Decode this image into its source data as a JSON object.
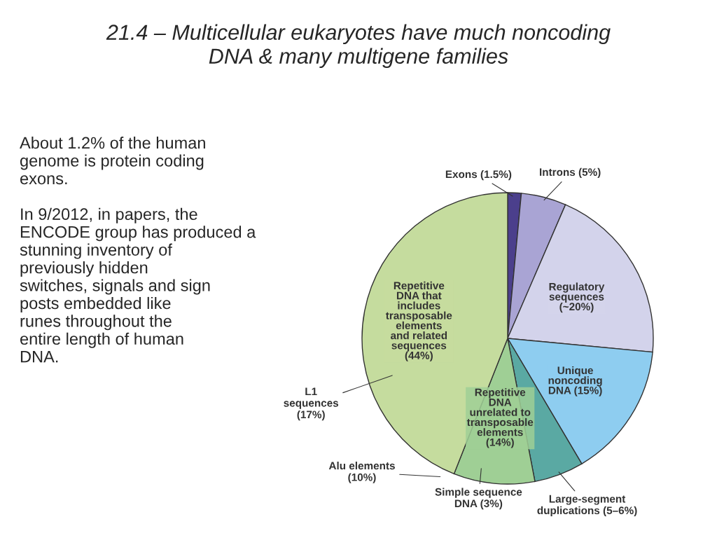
{
  "chart_data": {
    "type": "pie",
    "title": "21.4 – Multicellular eukaryotes have much noncoding\nDNA & many multigene families",
    "categories": [
      "Exons (1.5%)",
      "Introns (5%)",
      "Regulatory\nsequences\n(~20%)",
      "Unique\nnoncoding\nDNA (15%)",
      "Large-segment\nduplications (5–6%)",
      "Repetitive\nDNA\nunrelated to\ntransposable\nelements\n(14%)",
      "Repetitive\nDNA that\nincludes\ntransposable\nelements\nand related\nsequences\n(44%)"
    ],
    "values": [
      1.5,
      5,
      20,
      15,
      5.5,
      9,
      44
    ],
    "colors": [
      "#4b3f8c",
      "#a9a4d4",
      "#d3d3eb",
      "#8ecdf0",
      "#5aa9a3",
      "#9fcf95",
      "#c5dc9e"
    ],
    "annotations": [
      "About 1.2% of the human\ngenome is protein coding\nexons.\n\nIn 9/2012, in papers, the\nENCODE group has produced a\nstunning inventory of\npreviously hidden\nswitches, signals and sign\nposts embedded like\nrunes throughout the\nentire length of human\nDNA.",
      "L1\nsequences\n(17%)",
      "Alu elements\n(10%)",
      "Simple sequence\nDNA (3%)"
    ]
  }
}
